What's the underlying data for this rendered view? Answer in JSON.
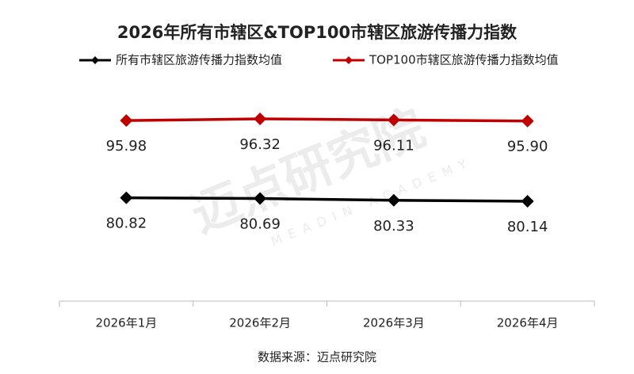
{
  "chart_data": {
    "type": "line",
    "title": "2026年所有市辖区&TOP100市辖区旅游传播力指数",
    "categories": [
      "2026年1月",
      "2026年2月",
      "2026年3月",
      "2026年4月"
    ],
    "series": [
      {
        "name": "所有市辖区旅游传播力指数均值",
        "color": "#000000",
        "values": [
          80.82,
          80.69,
          80.33,
          80.14
        ]
      },
      {
        "name": "TOP100市辖区旅游传播力指数均值",
        "color": "#c00000",
        "values": [
          95.98,
          96.32,
          96.11,
          95.9
        ],
        "value_labels": [
          "95.98",
          "96.32",
          "96.11",
          "95.90"
        ]
      }
    ],
    "source": "数据来源：迈点研究院",
    "watermark": "迈点研究院",
    "watermark_en": "MEADIN ACADEMY",
    "legend": "top"
  }
}
